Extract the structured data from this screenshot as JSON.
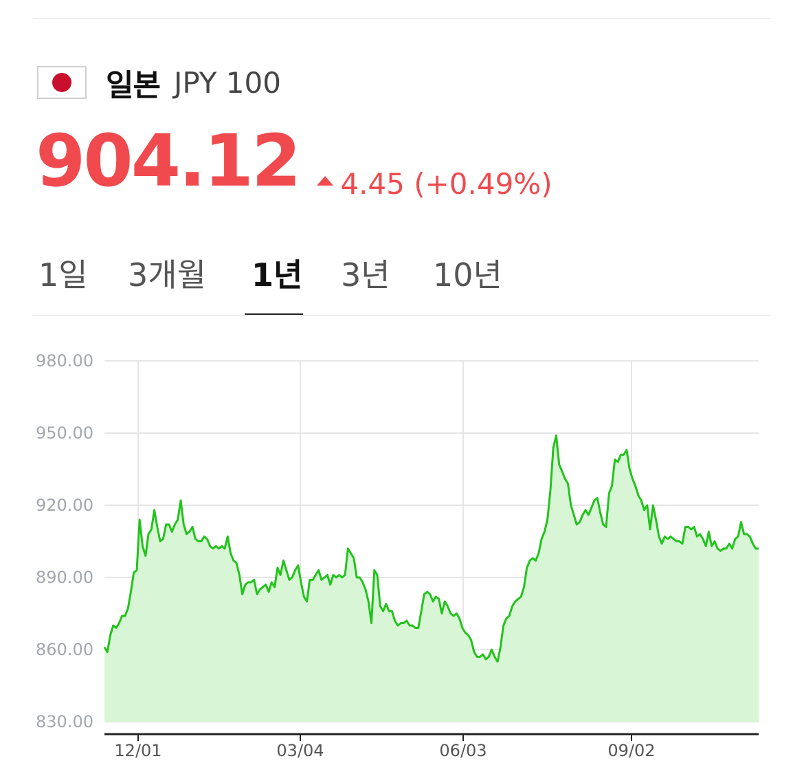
{
  "currency": {
    "name": "일본",
    "code": "JPY 100",
    "price": "904.12",
    "change": "4.45 (+0.49%)",
    "flag_color": "#c8102e",
    "accent_color": "#f04a4e"
  },
  "tabs": [
    {
      "label": "1일",
      "active": false
    },
    {
      "label": "3개월",
      "active": false
    },
    {
      "label": "1년",
      "active": true
    },
    {
      "label": "3년",
      "active": false
    },
    {
      "label": "10년",
      "active": false
    }
  ],
  "chart_data": {
    "type": "area",
    "ylim": [
      830,
      980
    ],
    "yticks": [
      "980.00",
      "950.00",
      "920.00",
      "890.00",
      "860.00",
      "830.00"
    ],
    "xticks": [
      "12/01",
      "03/04",
      "06/03",
      "09/02"
    ],
    "line_color": "#22c31c",
    "fill_color": "#d8f5d6",
    "grid": true,
    "values": [
      861,
      859,
      866,
      870,
      869,
      871,
      874,
      874,
      877,
      884,
      892,
      893,
      914,
      903,
      899,
      908,
      910,
      918,
      911,
      905,
      906,
      912,
      912,
      909,
      912,
      914,
      922,
      912,
      908,
      909,
      911,
      906,
      905,
      905,
      907,
      906,
      903,
      902,
      903,
      902,
      903,
      902,
      907,
      900,
      897,
      896,
      891,
      883,
      887,
      888,
      888,
      889,
      883,
      885,
      886,
      887,
      884,
      888,
      886,
      894,
      891,
      897,
      893,
      889,
      890,
      893,
      895,
      888,
      882,
      880,
      889,
      889,
      891,
      893,
      889,
      890,
      891,
      887,
      891,
      890,
      891,
      890,
      891,
      902,
      900,
      898,
      890,
      890,
      888,
      885,
      880,
      871,
      893,
      891,
      878,
      876,
      879,
      876,
      876,
      872,
      870,
      871,
      871,
      872,
      870,
      870,
      869,
      869,
      876,
      883,
      884,
      883,
      880,
      882,
      881,
      875,
      880,
      878,
      875,
      874,
      875,
      873,
      869,
      867,
      866,
      864,
      859,
      857,
      857,
      858,
      856,
      857,
      860,
      857,
      855,
      861,
      870,
      873,
      874,
      878,
      880,
      881,
      882,
      886,
      894,
      897,
      898,
      897,
      900,
      906,
      909,
      914,
      926,
      944,
      949,
      937,
      934,
      931,
      929,
      920,
      916,
      912,
      913,
      916,
      918,
      916,
      919,
      922,
      923,
      917,
      912,
      911,
      925,
      928,
      939,
      938,
      941,
      941,
      943,
      935,
      931,
      928,
      924,
      922,
      918,
      920,
      910,
      920,
      914,
      907,
      904,
      907,
      906,
      907,
      906,
      905,
      905,
      904,
      911,
      911,
      910,
      911,
      907,
      908,
      906,
      903,
      909,
      903,
      905,
      902,
      901,
      902,
      902,
      904,
      902,
      906,
      907,
      913,
      908,
      908,
      907,
      904,
      902,
      902
    ]
  }
}
